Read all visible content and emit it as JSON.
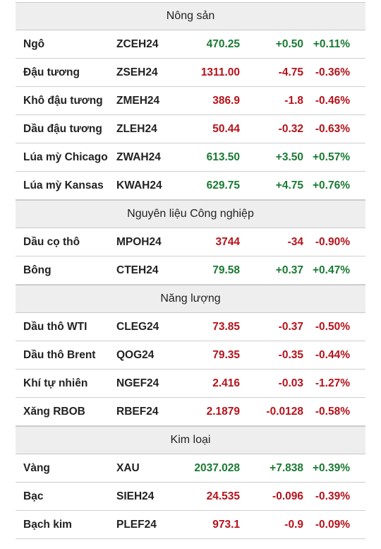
{
  "colors": {
    "up": "#1a7a32",
    "down": "#b5121b",
    "header_bg": "#eeeeee"
  },
  "sections": [
    {
      "title": "Nông sản",
      "rows": [
        {
          "name": "Ngô",
          "code": "ZCEH24",
          "price": "470.25",
          "change": "+0.50",
          "pct": "+0.11%",
          "dir": "up"
        },
        {
          "name": "Đậu tương",
          "code": "ZSEH24",
          "price": "1311.00",
          "change": "-4.75",
          "pct": "-0.36%",
          "dir": "down"
        },
        {
          "name": "Khô đậu tương",
          "code": "ZMEH24",
          "price": "386.9",
          "change": "-1.8",
          "pct": "-0.46%",
          "dir": "down"
        },
        {
          "name": "Dầu đậu tương",
          "code": "ZLEH24",
          "price": "50.44",
          "change": "-0.32",
          "pct": "-0.63%",
          "dir": "down"
        },
        {
          "name": "Lúa mỳ Chicago",
          "code": "ZWAH24",
          "price": "613.50",
          "change": "+3.50",
          "pct": "+0.57%",
          "dir": "up"
        },
        {
          "name": "Lúa mỳ Kansas",
          "code": "KWAH24",
          "price": "629.75",
          "change": "+4.75",
          "pct": "+0.76%",
          "dir": "up"
        }
      ]
    },
    {
      "title": "Nguyên liệu Công nghiệp",
      "rows": [
        {
          "name": "Dầu cọ thô",
          "code": "MPOH24",
          "price": "3744",
          "change": "-34",
          "pct": "-0.90%",
          "dir": "down"
        },
        {
          "name": "Bông",
          "code": "CTEH24",
          "price": "79.58",
          "change": "+0.37",
          "pct": "+0.47%",
          "dir": "up"
        }
      ]
    },
    {
      "title": "Năng lượng",
      "rows": [
        {
          "name": "Dầu thô WTI",
          "code": "CLEG24",
          "price": "73.85",
          "change": "-0.37",
          "pct": "-0.50%",
          "dir": "down"
        },
        {
          "name": "Dầu thô Brent",
          "code": "QOG24",
          "price": "79.35",
          "change": "-0.35",
          "pct": "-0.44%",
          "dir": "down"
        },
        {
          "name": "Khí tự nhiên",
          "code": "NGEF24",
          "price": "2.416",
          "change": "-0.03",
          "pct": "-1.27%",
          "dir": "down"
        },
        {
          "name": "Xăng RBOB",
          "code": "RBEF24",
          "price": "2.1879",
          "change": "-0.0128",
          "pct": "-0.58%",
          "dir": "down"
        }
      ]
    },
    {
      "title": "Kim loại",
      "rows": [
        {
          "name": "Vàng",
          "code": "XAU",
          "price": "2037.028",
          "change": "+7.838",
          "pct": "+0.39%",
          "dir": "up"
        },
        {
          "name": "Bạc",
          "code": "SIEH24",
          "price": "24.535",
          "change": "-0.096",
          "pct": "-0.39%",
          "dir": "down"
        },
        {
          "name": "Bạch kim",
          "code": "PLEF24",
          "price": "973.1",
          "change": "-0.9",
          "pct": "-0.09%",
          "dir": "down"
        }
      ]
    }
  ]
}
